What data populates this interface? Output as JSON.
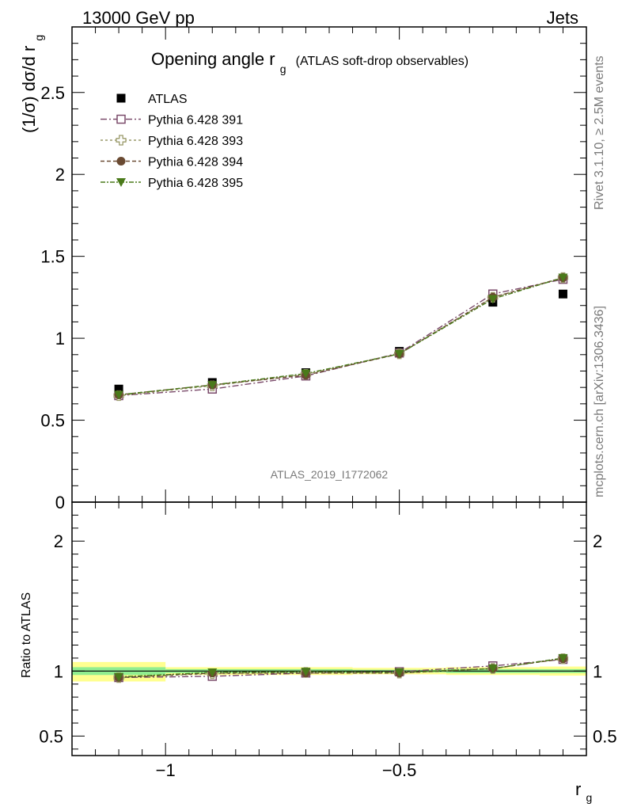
{
  "header": {
    "energy_label": "13000 GeV pp",
    "process_label": "Jets"
  },
  "side_labels": {
    "rivet": "Rivet 3.1.10, ≥ 2.5M events",
    "mcplots": "mcplots.cern.ch [arXiv:1306.3436]"
  },
  "chart_data": [
    {
      "type": "scatter",
      "title_main": "Opening angle r",
      "title_sub": "g",
      "title_suffix": "(ATLAS soft-drop observables)",
      "ylabel": "(1/σ) dσ/d r",
      "ylabel_sub": "g",
      "analysis_label": "ATLAS_2019_I1772062",
      "xlim": [
        -1.2,
        -0.1
      ],
      "ylim": [
        0,
        2.9
      ],
      "y_ticks": [
        0,
        0.5,
        1,
        1.5,
        2,
        2.5
      ],
      "y_tick_labels": [
        "0",
        "0.5",
        "1",
        "1.5",
        "2",
        "2.5"
      ],
      "legend_position": "top-left",
      "series": [
        {
          "name": "ATLAS",
          "marker": "filled-square",
          "color": "#000000",
          "x": [
            -1.1,
            -0.9,
            -0.7,
            -0.5,
            -0.3,
            -0.15
          ],
          "y": [
            0.69,
            0.73,
            0.79,
            0.92,
            1.22,
            1.27
          ]
        },
        {
          "name": "Pythia 6.428 391",
          "marker": "open-square",
          "color": "#7a4a6a",
          "x": [
            -1.1,
            -0.9,
            -0.7,
            -0.5,
            -0.3,
            -0.15
          ],
          "y": [
            0.65,
            0.69,
            0.77,
            0.91,
            1.27,
            1.36
          ]
        },
        {
          "name": "Pythia 6.428 393",
          "marker": "open-cross",
          "color": "#9a9a6a",
          "x": [
            -1.1,
            -0.9,
            -0.7,
            -0.5,
            -0.3,
            -0.15
          ],
          "y": [
            0.65,
            0.71,
            0.78,
            0.905,
            1.25,
            1.37
          ]
        },
        {
          "name": "Pythia 6.428 394",
          "marker": "filled-circle",
          "color": "#6a4a32",
          "x": [
            -1.1,
            -0.9,
            -0.7,
            -0.5,
            -0.3,
            -0.15
          ],
          "y": [
            0.655,
            0.715,
            0.775,
            0.905,
            1.25,
            1.37
          ]
        },
        {
          "name": "Pythia 6.428 395",
          "marker": "filled-triangle-down",
          "color": "#4a7a1a",
          "x": [
            -1.1,
            -0.9,
            -0.7,
            -0.5,
            -0.3,
            -0.15
          ],
          "y": [
            0.655,
            0.715,
            0.785,
            0.905,
            1.24,
            1.37
          ]
        }
      ]
    },
    {
      "type": "scatter",
      "ylabel": "Ratio to ATLAS",
      "xlabel": "r",
      "xlabel_sub": "g",
      "xlim": [
        -1.2,
        -0.1
      ],
      "ylim": [
        0.35,
        2.3
      ],
      "x_ticks": [
        -1,
        -0.5
      ],
      "x_tick_labels": [
        "−1",
        "−0.5"
      ],
      "y_ticks": [
        0.5,
        1,
        2
      ],
      "y_tick_labels": [
        "0.5",
        "1",
        "2"
      ],
      "bands": {
        "x_edges": [
          -1.2,
          -1.0,
          -0.6,
          -0.4,
          -0.2,
          -0.1
        ],
        "inner": [
          [
            0.97,
            1.03
          ],
          [
            0.985,
            1.015
          ],
          [
            0.99,
            1.01
          ],
          [
            0.985,
            1.015
          ],
          [
            0.985,
            1.015
          ]
        ],
        "outer": [
          [
            0.92,
            1.07
          ],
          [
            0.97,
            1.03
          ],
          [
            0.975,
            1.025
          ],
          [
            0.97,
            1.03
          ],
          [
            0.965,
            1.035
          ]
        ],
        "inner_color": "#90ee90",
        "outer_color": "#ffff90"
      },
      "series": [
        {
          "name": "Pythia 6.428 391",
          "marker": "open-square",
          "color": "#7a4a6a",
          "x": [
            -1.1,
            -0.9,
            -0.7,
            -0.5,
            -0.3,
            -0.15
          ],
          "y": [
            0.95,
            0.96,
            0.985,
            0.995,
            1.04,
            1.09
          ]
        },
        {
          "name": "Pythia 6.428 393",
          "marker": "open-cross",
          "color": "#9a9a6a",
          "x": [
            -1.1,
            -0.9,
            -0.7,
            -0.5,
            -0.3,
            -0.15
          ],
          "y": [
            0.95,
            0.98,
            0.99,
            0.985,
            1.02,
            1.095
          ]
        },
        {
          "name": "Pythia 6.428 394",
          "marker": "filled-circle",
          "color": "#6a4a32",
          "x": [
            -1.1,
            -0.9,
            -0.7,
            -0.5,
            -0.3,
            -0.15
          ],
          "y": [
            0.95,
            0.985,
            0.985,
            0.985,
            1.02,
            1.095
          ]
        },
        {
          "name": "Pythia 6.428 395",
          "marker": "filled-triangle-down",
          "color": "#4a7a1a",
          "x": [
            -1.1,
            -0.9,
            -0.7,
            -0.5,
            -0.3,
            -0.15
          ],
          "y": [
            0.955,
            0.99,
            0.995,
            0.99,
            1.02,
            1.1
          ]
        }
      ]
    }
  ]
}
